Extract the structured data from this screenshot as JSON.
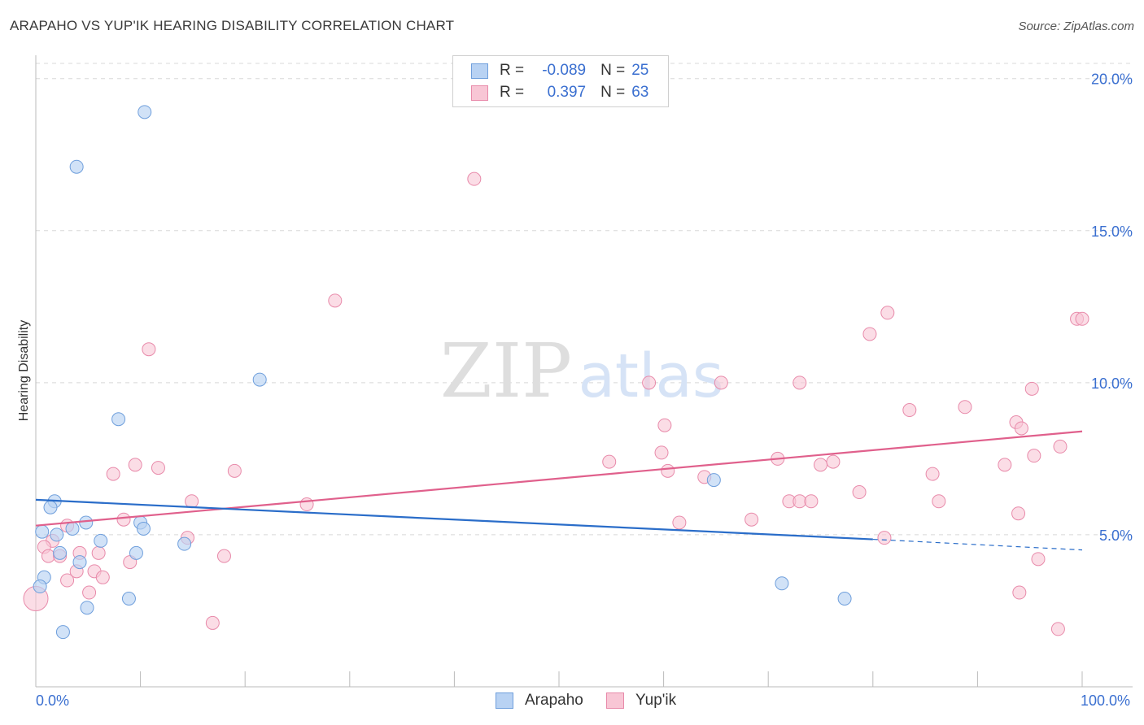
{
  "title": "ARAPAHO VS YUP'IK HEARING DISABILITY CORRELATION CHART",
  "source": "Source: ZipAtlas.com",
  "watermark": {
    "zip": "ZIP",
    "atlas": "atlas"
  },
  "legend": {
    "arapaho": {
      "r_label": "R =",
      "r_value": "-0.089",
      "n_label": "N =",
      "n_value": "25"
    },
    "yupik": {
      "r_label": "R =",
      "r_value": "0.397",
      "n_label": "N =",
      "n_value": "63"
    }
  },
  "bottom_legend": {
    "arapaho": "Arapaho",
    "yupik": "Yup'ik"
  },
  "colors": {
    "arapaho_fill": "#b8d2f3",
    "arapaho_stroke": "#6f9fdc",
    "arapaho_line": "#2a6dc9",
    "yupik_fill": "#f8c6d5",
    "yupik_stroke": "#e88aaa",
    "yupik_line": "#e0608c",
    "axis_text": "#3a6fd0",
    "grid": "#d8d8d8"
  },
  "chart_data": {
    "type": "scatter",
    "title": "ARAPAHO VS YUP'IK HEARING DISABILITY CORRELATION CHART",
    "xlabel": "",
    "ylabel": "Hearing Disability",
    "xlim": [
      0,
      100
    ],
    "ylim": [
      0,
      20.5
    ],
    "x_tick_labels": [
      "0.0%",
      "100.0%"
    ],
    "y_ticks": [
      5,
      10,
      15,
      20
    ],
    "y_tick_labels": [
      "5.0%",
      "10.0%",
      "15.0%",
      "20.0%"
    ],
    "grid": true,
    "series": [
      {
        "name": "Arapaho",
        "r": -0.089,
        "n": 25,
        "points": [
          [
            10.4,
            18.9
          ],
          [
            3.9,
            17.1
          ],
          [
            21.4,
            10.1
          ],
          [
            7.9,
            8.8
          ],
          [
            64.8,
            6.8
          ],
          [
            1.8,
            6.1
          ],
          [
            1.4,
            5.9
          ],
          [
            4.8,
            5.4
          ],
          [
            10.0,
            5.4
          ],
          [
            10.3,
            5.2
          ],
          [
            0.6,
            5.1
          ],
          [
            3.5,
            5.2
          ],
          [
            2.0,
            5.0
          ],
          [
            6.2,
            4.8
          ],
          [
            14.2,
            4.7
          ],
          [
            2.3,
            4.4
          ],
          [
            9.6,
            4.4
          ],
          [
            4.2,
            4.1
          ],
          [
            0.8,
            3.6
          ],
          [
            0.4,
            3.3
          ],
          [
            71.3,
            3.4
          ],
          [
            77.3,
            2.9
          ],
          [
            4.9,
            2.6
          ],
          [
            8.9,
            2.9
          ],
          [
            2.6,
            1.8
          ]
        ],
        "trend": {
          "x": [
            0,
            80
          ],
          "y": [
            6.15,
            4.85
          ],
          "dashed_x": [
            80,
            100
          ],
          "dashed_y": [
            4.85,
            4.5
          ]
        }
      },
      {
        "name": "Yup'ik",
        "r": 0.397,
        "n": 63,
        "points": [
          [
            41.9,
            16.7
          ],
          [
            28.6,
            12.7
          ],
          [
            81.4,
            12.3
          ],
          [
            79.7,
            11.6
          ],
          [
            99.5,
            12.1
          ],
          [
            100.0,
            12.1
          ],
          [
            10.8,
            11.1
          ],
          [
            58.6,
            10.0
          ],
          [
            73.0,
            10.0
          ],
          [
            65.5,
            10.0
          ],
          [
            95.2,
            9.8
          ],
          [
            83.5,
            9.1
          ],
          [
            88.8,
            9.2
          ],
          [
            60.1,
            8.6
          ],
          [
            93.7,
            8.7
          ],
          [
            94.2,
            8.5
          ],
          [
            97.9,
            7.9
          ],
          [
            59.8,
            7.7
          ],
          [
            95.4,
            7.6
          ],
          [
            54.8,
            7.4
          ],
          [
            70.9,
            7.5
          ],
          [
            76.2,
            7.4
          ],
          [
            75.0,
            7.3
          ],
          [
            92.6,
            7.3
          ],
          [
            60.4,
            7.1
          ],
          [
            9.5,
            7.3
          ],
          [
            11.7,
            7.2
          ],
          [
            7.4,
            7.0
          ],
          [
            19.0,
            7.1
          ],
          [
            85.7,
            7.0
          ],
          [
            63.9,
            6.9
          ],
          [
            78.7,
            6.4
          ],
          [
            14.9,
            6.1
          ],
          [
            25.9,
            6.0
          ],
          [
            72.0,
            6.1
          ],
          [
            73.0,
            6.1
          ],
          [
            74.1,
            6.1
          ],
          [
            86.3,
            6.1
          ],
          [
            93.9,
            5.7
          ],
          [
            8.4,
            5.5
          ],
          [
            61.5,
            5.4
          ],
          [
            68.4,
            5.5
          ],
          [
            3.0,
            5.3
          ],
          [
            1.6,
            4.8
          ],
          [
            0.8,
            4.6
          ],
          [
            14.5,
            4.9
          ],
          [
            81.1,
            4.9
          ],
          [
            4.2,
            4.4
          ],
          [
            1.2,
            4.3
          ],
          [
            6.0,
            4.4
          ],
          [
            2.3,
            4.3
          ],
          [
            9.0,
            4.1
          ],
          [
            18.0,
            4.3
          ],
          [
            3.9,
            3.8
          ],
          [
            5.6,
            3.8
          ],
          [
            6.4,
            3.6
          ],
          [
            3.0,
            3.5
          ],
          [
            5.1,
            3.1
          ],
          [
            95.8,
            4.2
          ],
          [
            94.0,
            3.1
          ],
          [
            0.0,
            2.9
          ],
          [
            16.9,
            2.1
          ],
          [
            97.7,
            1.9
          ]
        ],
        "trend": {
          "x": [
            0,
            100
          ],
          "y": [
            5.3,
            8.4
          ]
        }
      }
    ]
  }
}
